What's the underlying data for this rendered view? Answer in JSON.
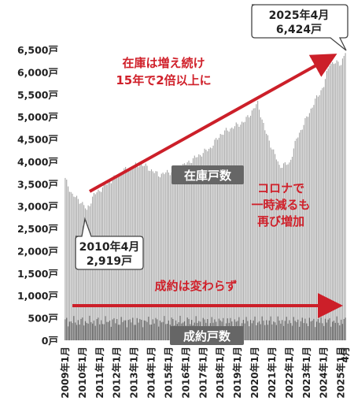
{
  "chart_data": {
    "type": "bar",
    "unit": "戸",
    "yticks": [
      "0戸",
      "500戸",
      "1,000戸",
      "1,500戸",
      "2,000戸",
      "2,500戸",
      "3,000戸",
      "3,500戸",
      "4,000戸",
      "4,500戸",
      "5,000戸",
      "5,500戸",
      "6,000戸",
      "6,500戸"
    ],
    "ylim": [
      0,
      6500
    ],
    "xticks": [
      "2009年1月",
      "2010年1月",
      "2011年1月",
      "2012年1月",
      "2013年1月",
      "2014年1月",
      "2015年1月",
      "2016年1月",
      "2017年1月",
      "2018年1月",
      "2019年1月",
      "2020年1月",
      "2021年1月",
      "2022年1月",
      "2023年1月",
      "2024年1月",
      "2025年1月",
      "4月"
    ],
    "grid": false,
    "legend": "none",
    "series": [
      {
        "name": "在庫戸数",
        "color": "#a8a8a8",
        "anchors": [
          [
            "2009-01",
            3600
          ],
          [
            "2009-06",
            3250
          ],
          [
            "2009-12",
            3100
          ],
          [
            "2010-04",
            2919
          ],
          [
            "2010-09",
            3250
          ],
          [
            "2011-06",
            3500
          ],
          [
            "2012-06",
            3800
          ],
          [
            "2013-06",
            3950
          ],
          [
            "2014-06",
            3700
          ],
          [
            "2015-06",
            3800
          ],
          [
            "2016-06",
            4050
          ],
          [
            "2017-06",
            4300
          ],
          [
            "2018-01",
            4600
          ],
          [
            "2018-06",
            4700
          ],
          [
            "2019-06",
            4900
          ],
          [
            "2020-03",
            5300
          ],
          [
            "2020-08",
            4700
          ],
          [
            "2021-06",
            3900
          ],
          [
            "2022-01",
            3950
          ],
          [
            "2022-06",
            4500
          ],
          [
            "2023-06",
            5300
          ],
          [
            "2024-01",
            5700
          ],
          [
            "2024-05",
            6200
          ],
          [
            "2025-01",
            6200
          ],
          [
            "2025-04",
            6424
          ]
        ]
      },
      {
        "name": "成約戸数",
        "color": "#555555",
        "approx_level": 420,
        "range": [
          250,
          600
        ]
      }
    ]
  },
  "callouts": {
    "latest": {
      "line1": "2025年4月",
      "line2": "6,424戸"
    },
    "low": {
      "line1": "2010年4月",
      "line2": "2,919戸"
    }
  },
  "notes": {
    "growth_line1": "在庫は増え続け",
    "growth_line2": "15年で2倍以上に",
    "covid_line1": "コロナで",
    "covid_line2": "一時減るも",
    "covid_line3": "再び増加",
    "flat": "成約は変わらず"
  },
  "series_labels": {
    "inventory": "在庫戸数",
    "contracts": "成約戸数"
  },
  "colors": {
    "arrow": "#cc1f29",
    "note_text": "#d0202a",
    "inventory_bar": "#a8a8a8",
    "contract_bar": "#555555",
    "label_bg": "#666666"
  }
}
